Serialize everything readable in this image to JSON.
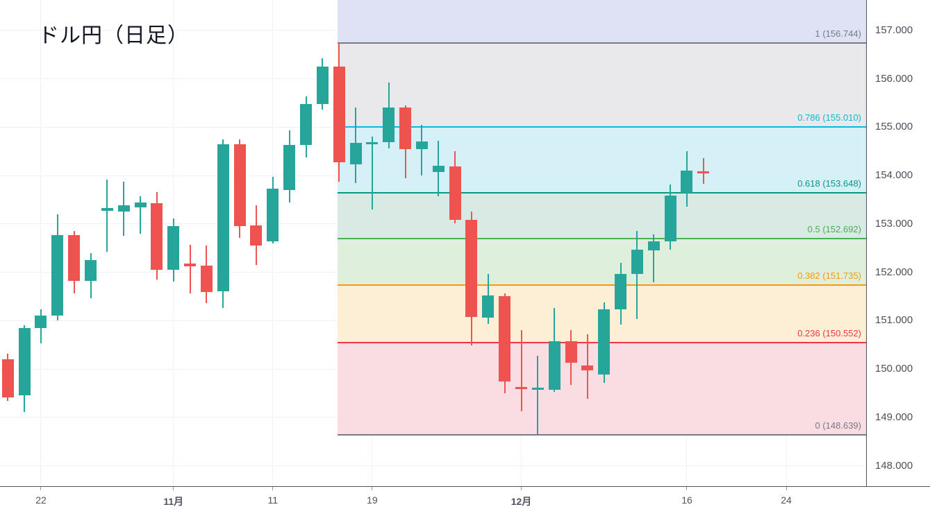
{
  "title": "ドル円（日足）",
  "colors": {
    "background": "#ffffff",
    "grid": "#eef2f9",
    "axis_border": "#50535e",
    "axis_text": "#4c4f59",
    "up_candle": "#26a69a",
    "down_candle": "#ef5350"
  },
  "chart_data": {
    "type": "candlestick",
    "title": "ドル円（日足）",
    "symbol": "ドル円",
    "timeframe": "日足",
    "legend_position": "none",
    "grid": true,
    "ylim": [
      147.58,
      157.63
    ],
    "y_axis_ticks": [
      {
        "price": 157,
        "label": "157.000"
      },
      {
        "price": 156,
        "label": "156.000"
      },
      {
        "price": 155,
        "label": "155.000"
      },
      {
        "price": 154,
        "label": "154.000"
      },
      {
        "price": 153,
        "label": "153.000"
      },
      {
        "price": 152,
        "label": "152.000"
      },
      {
        "price": 151,
        "label": "151.000"
      },
      {
        "price": 150,
        "label": "150.000"
      },
      {
        "price": 149,
        "label": "149.000"
      },
      {
        "price": 148,
        "label": "148.000"
      }
    ],
    "x_axis_ticks": [
      {
        "label": "22",
        "index": 2,
        "bold": false
      },
      {
        "label": "11月",
        "index": 10,
        "bold": true
      },
      {
        "label": "11",
        "index": 16,
        "bold": false
      },
      {
        "label": "19",
        "index": 22,
        "bold": false
      },
      {
        "label": "12月",
        "index": 31,
        "bold": true
      },
      {
        "label": "16",
        "index": 41,
        "bold": false
      },
      {
        "label": "24",
        "index": 47,
        "bold": false
      }
    ],
    "candles": [
      {
        "date": "10/18",
        "o": 150.21,
        "h": 150.32,
        "l": 149.35,
        "c": 149.41
      },
      {
        "date": "10/21",
        "o": 149.46,
        "h": 150.9,
        "l": 149.11,
        "c": 150.85
      },
      {
        "date": "10/22",
        "o": 150.85,
        "h": 151.24,
        "l": 150.53,
        "c": 151.11
      },
      {
        "date": "10/23",
        "o": 151.1,
        "h": 153.2,
        "l": 151.0,
        "c": 152.77
      },
      {
        "date": "10/24",
        "o": 152.77,
        "h": 152.86,
        "l": 151.56,
        "c": 151.82
      },
      {
        "date": "10/25",
        "o": 151.82,
        "h": 152.4,
        "l": 151.47,
        "c": 152.25
      },
      {
        "date": "10/28",
        "o": 153.27,
        "h": 153.91,
        "l": 152.43,
        "c": 153.33
      },
      {
        "date": "10/29",
        "o": 153.26,
        "h": 153.88,
        "l": 152.75,
        "c": 153.38
      },
      {
        "date": "10/30",
        "o": 153.34,
        "h": 153.57,
        "l": 152.8,
        "c": 153.45
      },
      {
        "date": "10/31",
        "o": 153.43,
        "h": 153.66,
        "l": 151.85,
        "c": 152.05
      },
      {
        "date": "11/1",
        "o": 152.05,
        "h": 153.11,
        "l": 151.81,
        "c": 152.95
      },
      {
        "date": "11/4",
        "o": 152.18,
        "h": 152.57,
        "l": 151.56,
        "c": 152.13
      },
      {
        "date": "11/5",
        "o": 152.14,
        "h": 152.55,
        "l": 151.37,
        "c": 151.6
      },
      {
        "date": "11/6",
        "o": 151.61,
        "h": 154.75,
        "l": 151.27,
        "c": 154.65
      },
      {
        "date": "11/7",
        "o": 154.65,
        "h": 154.75,
        "l": 152.71,
        "c": 152.95
      },
      {
        "date": "11/8",
        "o": 152.97,
        "h": 153.39,
        "l": 152.15,
        "c": 152.56
      },
      {
        "date": "11/11",
        "o": 152.64,
        "h": 153.97,
        "l": 152.6,
        "c": 153.73
      },
      {
        "date": "11/12",
        "o": 153.7,
        "h": 154.93,
        "l": 153.45,
        "c": 154.63
      },
      {
        "date": "11/13",
        "o": 154.63,
        "h": 155.64,
        "l": 154.38,
        "c": 155.48
      },
      {
        "date": "11/14",
        "o": 155.48,
        "h": 156.43,
        "l": 155.36,
        "c": 156.25
      },
      {
        "date": "11/15",
        "o": 156.25,
        "h": 156.74,
        "l": 153.88,
        "c": 154.28
      },
      {
        "date": "11/18",
        "o": 154.23,
        "h": 155.41,
        "l": 153.85,
        "c": 154.67
      },
      {
        "date": "11/19",
        "o": 154.68,
        "h": 154.81,
        "l": 153.3,
        "c": 154.69
      },
      {
        "date": "11/20",
        "o": 154.69,
        "h": 155.92,
        "l": 154.56,
        "c": 155.41
      },
      {
        "date": "11/21",
        "o": 155.41,
        "h": 155.45,
        "l": 153.95,
        "c": 154.55
      },
      {
        "date": "11/22",
        "o": 154.55,
        "h": 155.05,
        "l": 154.0,
        "c": 154.71
      },
      {
        "date": "11/25",
        "o": 154.08,
        "h": 154.72,
        "l": 153.57,
        "c": 154.2
      },
      {
        "date": "11/26",
        "o": 154.19,
        "h": 154.5,
        "l": 153.02,
        "c": 153.09
      },
      {
        "date": "11/27",
        "o": 153.09,
        "h": 153.26,
        "l": 150.49,
        "c": 151.08
      },
      {
        "date": "11/28",
        "o": 151.07,
        "h": 151.97,
        "l": 150.93,
        "c": 151.52
      },
      {
        "date": "11/29",
        "o": 151.51,
        "h": 151.57,
        "l": 149.5,
        "c": 149.74
      },
      {
        "date": "12/2",
        "o": 149.63,
        "h": 150.8,
        "l": 149.13,
        "c": 149.58
      },
      {
        "date": "12/3",
        "o": 149.6,
        "h": 150.28,
        "l": 148.66,
        "c": 149.61
      },
      {
        "date": "12/4",
        "o": 149.57,
        "h": 151.27,
        "l": 149.53,
        "c": 150.57
      },
      {
        "date": "12/5",
        "o": 150.57,
        "h": 150.81,
        "l": 149.67,
        "c": 150.13
      },
      {
        "date": "12/6",
        "o": 150.08,
        "h": 150.72,
        "l": 149.38,
        "c": 149.97
      },
      {
        "date": "12/9",
        "o": 149.89,
        "h": 151.38,
        "l": 149.72,
        "c": 151.23
      },
      {
        "date": "12/10",
        "o": 151.23,
        "h": 152.19,
        "l": 150.92,
        "c": 151.97
      },
      {
        "date": "12/11",
        "o": 151.97,
        "h": 152.86,
        "l": 151.04,
        "c": 152.47
      },
      {
        "date": "12/12",
        "o": 152.46,
        "h": 152.78,
        "l": 151.8,
        "c": 152.64
      },
      {
        "date": "12/13",
        "o": 152.64,
        "h": 153.81,
        "l": 152.47,
        "c": 153.59
      },
      {
        "date": "12/16",
        "o": 153.65,
        "h": 154.5,
        "l": 153.36,
        "c": 154.11
      },
      {
        "date": "12/17",
        "o": 154.09,
        "h": 154.36,
        "l": 153.83,
        "c": 154.06
      }
    ],
    "fibonacci": {
      "applies_from_date": "11/15",
      "start_index": 20,
      "anchor_high": 156.744,
      "anchor_low": 148.639,
      "levels": [
        {
          "ratio": "1",
          "price": 156.744,
          "label": "1 (156.744)",
          "color": "#787b86"
        },
        {
          "ratio": "0.786",
          "price": 155.01,
          "label": "0.786 (155.010)",
          "color": "#00bcd4"
        },
        {
          "ratio": "0.618",
          "price": 153.648,
          "label": "0.618 (153.648)",
          "color": "#089981"
        },
        {
          "ratio": "0.5",
          "price": 152.692,
          "label": "0.5 (152.692)",
          "color": "#4caf50"
        },
        {
          "ratio": "0.382",
          "price": 151.735,
          "label": "0.382 (151.735)",
          "color": "#ff9800"
        },
        {
          "ratio": "0.236",
          "price": 150.552,
          "label": "0.236 (150.552)",
          "color": "#f23645"
        },
        {
          "ratio": "0",
          "price": 148.639,
          "label": "0 (148.639)",
          "color": "#787b86"
        }
      ],
      "zones": [
        {
          "top_price": null,
          "bottom_price": 156.744,
          "color": "#dfe2f4"
        },
        {
          "top_price": 156.744,
          "bottom_price": 155.01,
          "color": "#e9e9ec"
        },
        {
          "top_price": 155.01,
          "bottom_price": 153.648,
          "color": "#d5f0f6"
        },
        {
          "top_price": 153.648,
          "bottom_price": 152.692,
          "color": "#d9e9e4"
        },
        {
          "top_price": 152.692,
          "bottom_price": 151.735,
          "color": "#def0dc"
        },
        {
          "top_price": 151.735,
          "bottom_price": 150.552,
          "color": "#fdeed6"
        },
        {
          "top_price": 150.552,
          "bottom_price": 148.639,
          "color": "#fadde2"
        }
      ]
    }
  }
}
